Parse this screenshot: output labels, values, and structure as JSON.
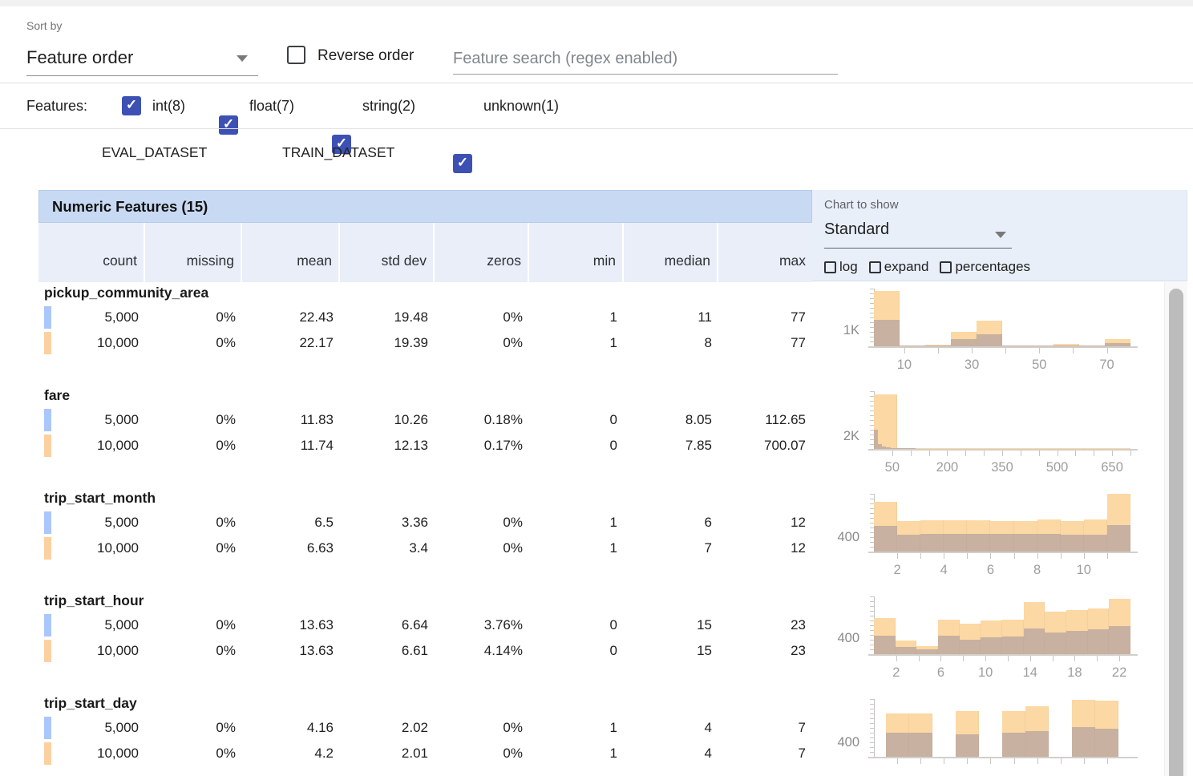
{
  "icons": {
    "check": "✓"
  },
  "toolbar": {
    "sort_by_label": "Sort by",
    "sort_value": "Feature order",
    "reverse_label": "Reverse order",
    "search_placeholder": "Feature search (regex enabled)"
  },
  "filters": {
    "label": "Features:",
    "items": [
      {
        "label": "int(8)",
        "checked": true
      },
      {
        "label": "float(7)",
        "checked": true
      },
      {
        "label": "string(2)",
        "checked": true
      },
      {
        "label": "unknown(1)",
        "checked": true
      }
    ]
  },
  "datasets": {
    "items": [
      {
        "name": "EVAL_DATASET",
        "color": "#a9c7fa"
      },
      {
        "name": "TRAIN_DATASET",
        "color": "#fbd1a1"
      }
    ]
  },
  "table": {
    "title": "Numeric Features (15)",
    "columns": [
      "count",
      "missing",
      "mean",
      "std dev",
      "zeros",
      "min",
      "median",
      "max"
    ]
  },
  "chart_controls": {
    "label": "Chart to show",
    "selected": "Standard",
    "options": [
      {
        "label": "log",
        "checked": false
      },
      {
        "label": "expand",
        "checked": false
      },
      {
        "label": "percentages",
        "checked": false
      }
    ]
  },
  "chart_data": {
    "type": "histogram-table",
    "legend": {
      "eval_label": "EVAL_DATASET",
      "eval_count": "5,000",
      "train_label": "TRAIN_DATASET",
      "train_count": "10,000"
    },
    "features": [
      {
        "name": "pickup_community_area",
        "stats": [
          {
            "dataset": "EVAL_DATASET",
            "values": [
              "5,000",
              "0%",
              "22.43",
              "19.48",
              "0%",
              "1",
              "11",
              "77"
            ]
          },
          {
            "dataset": "TRAIN_DATASET",
            "values": [
              "10,000",
              "0%",
              "22.17",
              "19.39",
              "0%",
              "1",
              "8",
              "77"
            ]
          }
        ],
        "hist": {
          "y_max": 3600,
          "y_gridline": {
            "value": 1000,
            "label": "1K"
          },
          "x_domain": [
            1,
            77
          ],
          "x_ticks": [
            {
              "v": 10,
              "label": "10"
            },
            {
              "v": 20
            },
            {
              "v": 30,
              "label": "30"
            },
            {
              "v": 40
            },
            {
              "v": 50,
              "label": "50"
            },
            {
              "v": 60
            },
            {
              "v": 70,
              "label": "70"
            }
          ],
          "train_bins": [
            [
              1,
              8.6,
              3450
            ],
            [
              8.6,
              16.2,
              70
            ],
            [
              16.2,
              23.8,
              120
            ],
            [
              23.8,
              31.4,
              900
            ],
            [
              31.4,
              39,
              1620
            ],
            [
              39,
              46.6,
              60
            ],
            [
              46.6,
              54.2,
              55
            ],
            [
              54.2,
              61.8,
              165
            ],
            [
              61.8,
              69.4,
              45
            ],
            [
              69.4,
              77,
              430
            ]
          ],
          "eval_bins": [
            [
              1,
              8.6,
              1650
            ],
            [
              8.6,
              16.2,
              30
            ],
            [
              16.2,
              23.8,
              45
            ],
            [
              23.8,
              31.4,
              430
            ],
            [
              31.4,
              39,
              760
            ],
            [
              39,
              46.6,
              25
            ],
            [
              46.6,
              54.2,
              20
            ],
            [
              54.2,
              61.8,
              60
            ],
            [
              61.8,
              69.4,
              18
            ],
            [
              69.4,
              77,
              180
            ]
          ]
        }
      },
      {
        "name": "fare",
        "stats": [
          {
            "dataset": "EVAL_DATASET",
            "values": [
              "5,000",
              "0%",
              "11.83",
              "10.26",
              "0.18%",
              "0",
              "8.05",
              "112.65"
            ]
          },
          {
            "dataset": "TRAIN_DATASET",
            "values": [
              "10,000",
              "0%",
              "11.74",
              "12.13",
              "0.17%",
              "0",
              "7.85",
              "700.07"
            ]
          }
        ],
        "hist": {
          "y_max": 9000,
          "y_gridline": {
            "value": 2000,
            "label": "2K"
          },
          "x_domain": [
            0,
            700
          ],
          "x_ticks": [
            {
              "v": 50,
              "label": "50"
            },
            {
              "v": 100
            },
            {
              "v": 150
            },
            {
              "v": 200,
              "label": "200"
            },
            {
              "v": 250
            },
            {
              "v": 300
            },
            {
              "v": 350,
              "label": "350"
            },
            {
              "v": 400
            },
            {
              "v": 450
            },
            {
              "v": 500,
              "label": "500"
            },
            {
              "v": 550
            },
            {
              "v": 600
            },
            {
              "v": 650,
              "label": "650"
            },
            {
              "v": 700
            }
          ],
          "train_bins": [
            [
              0,
              63.6,
              8500
            ],
            [
              63.6,
              127.3,
              120
            ],
            [
              127.3,
              190.9,
              40
            ],
            [
              190.9,
              254.5,
              15
            ],
            [
              254.5,
              318.2,
              8
            ],
            [
              318.2,
              381.8,
              5
            ],
            [
              381.8,
              445.5,
              3
            ],
            [
              445.5,
              509.1,
              2
            ],
            [
              509.1,
              572.7,
              2
            ],
            [
              572.7,
              636.4,
              1
            ],
            [
              636.4,
              700.1,
              2
            ]
          ],
          "eval_bins": [
            [
              0,
              11.3,
              3000
            ],
            [
              11.3,
              22.5,
              750
            ],
            [
              22.5,
              33.8,
              375
            ],
            [
              33.8,
              45.1,
              250
            ],
            [
              45.1,
              56.3,
              120
            ],
            [
              56.3,
              67.6,
              60
            ],
            [
              67.6,
              78.8,
              30
            ],
            [
              78.8,
              90.1,
              20
            ],
            [
              90.1,
              101.4,
              12
            ],
            [
              101.4,
              112.7,
              8
            ]
          ]
        }
      },
      {
        "name": "trip_start_month",
        "stats": [
          {
            "dataset": "EVAL_DATASET",
            "values": [
              "5,000",
              "0%",
              "6.5",
              "3.36",
              "0%",
              "1",
              "6",
              "12"
            ]
          },
          {
            "dataset": "TRAIN_DATASET",
            "values": [
              "10,000",
              "0%",
              "6.63",
              "3.4",
              "0%",
              "1",
              "7",
              "12"
            ]
          }
        ],
        "hist": {
          "y_max": 1600,
          "y_gridline": {
            "value": 400,
            "label": "400"
          },
          "x_domain": [
            1,
            12
          ],
          "x_ticks": [
            {
              "v": 2,
              "label": "2"
            },
            {
              "v": 3
            },
            {
              "v": 4,
              "label": "4"
            },
            {
              "v": 5
            },
            {
              "v": 6,
              "label": "6"
            },
            {
              "v": 7
            },
            {
              "v": 8,
              "label": "8"
            },
            {
              "v": 9
            },
            {
              "v": 10,
              "label": "10"
            },
            {
              "v": 11
            }
          ],
          "train_bins": [
            [
              1,
              2,
              1376
            ],
            [
              2,
              3,
              850
            ],
            [
              3,
              4,
              870
            ],
            [
              4,
              5,
              865
            ],
            [
              5,
              6,
              858
            ],
            [
              6,
              7,
              852
            ],
            [
              7,
              8,
              848
            ],
            [
              8,
              9,
              880
            ],
            [
              9,
              10,
              845
            ],
            [
              10,
              11,
              900
            ],
            [
              11,
              12,
              1600
            ]
          ],
          "eval_bins": [
            [
              1,
              2,
              720
            ],
            [
              2,
              3,
              470
            ],
            [
              3,
              4,
              480
            ],
            [
              4,
              5,
              490
            ],
            [
              5,
              6,
              485
            ],
            [
              6,
              7,
              488
            ],
            [
              7,
              8,
              480
            ],
            [
              8,
              9,
              478
            ],
            [
              9,
              10,
              460
            ],
            [
              10,
              11,
              470
            ],
            [
              11,
              12,
              740
            ]
          ]
        }
      },
      {
        "name": "trip_start_hour",
        "stats": [
          {
            "dataset": "EVAL_DATASET",
            "values": [
              "5,000",
              "0%",
              "13.63",
              "6.64",
              "3.76%",
              "0",
              "15",
              "23"
            ]
          },
          {
            "dataset": "TRAIN_DATASET",
            "values": [
              "10,000",
              "0%",
              "13.63",
              "6.61",
              "4.14%",
              "0",
              "15",
              "23"
            ]
          }
        ],
        "hist": {
          "y_max": 1440,
          "y_gridline": {
            "value": 400,
            "label": "400"
          },
          "x_domain": [
            0,
            23
          ],
          "x_ticks": [
            {
              "v": 2,
              "label": "2"
            },
            {
              "v": 4
            },
            {
              "v": 6,
              "label": "6"
            },
            {
              "v": 8
            },
            {
              "v": 10,
              "label": "10"
            },
            {
              "v": 12
            },
            {
              "v": 14,
              "label": "14"
            },
            {
              "v": 16
            },
            {
              "v": 18,
              "label": "18"
            },
            {
              "v": 20
            },
            {
              "v": 22,
              "label": "22"
            }
          ],
          "train_bins": [
            [
              0,
              1.92,
              900
            ],
            [
              1.92,
              3.83,
              331
            ],
            [
              3.83,
              5.75,
              200
            ],
            [
              5.75,
              7.67,
              864
            ],
            [
              7.67,
              9.58,
              763
            ],
            [
              9.58,
              11.5,
              850
            ],
            [
              11.5,
              13.42,
              864
            ],
            [
              13.42,
              15.33,
              1296
            ],
            [
              15.33,
              17.25,
              1051
            ],
            [
              17.25,
              19.17,
              1109
            ],
            [
              19.17,
              21.08,
              1138
            ],
            [
              21.08,
              23,
              1380
            ]
          ],
          "eval_bins": [
            [
              0,
              1.92,
              461
            ],
            [
              1.92,
              3.83,
              180
            ],
            [
              3.83,
              5.75,
              130
            ],
            [
              5.75,
              7.67,
              461
            ],
            [
              7.67,
              9.58,
              360
            ],
            [
              9.58,
              11.5,
              418
            ],
            [
              11.5,
              13.42,
              446
            ],
            [
              13.42,
              15.33,
              634
            ],
            [
              15.33,
              17.25,
              547
            ],
            [
              17.25,
              19.17,
              576
            ],
            [
              19.17,
              21.08,
              619
            ],
            [
              21.08,
              23,
              700
            ]
          ]
        }
      },
      {
        "name": "trip_start_day",
        "stats": [
          {
            "dataset": "EVAL_DATASET",
            "values": [
              "5,000",
              "0%",
              "4.16",
              "2.02",
              "0%",
              "1",
              "4",
              "7"
            ]
          },
          {
            "dataset": "TRAIN_DATASET",
            "values": [
              "10,000",
              "0%",
              "4.2",
              "2.01",
              "0%",
              "1",
              "4",
              "7"
            ]
          }
        ],
        "hist": {
          "y_max": 1600,
          "y_gridline": {
            "value": 400,
            "label": "400"
          },
          "x_domain": [
            0.7,
            7.3
          ],
          "x_ticks": [
            {
              "v": 1.3
            },
            {
              "v": 1.9
            },
            {
              "v": 2.5
            },
            {
              "v": 3.1
            },
            {
              "v": 3.7
            },
            {
              "v": 4.3
            },
            {
              "v": 4.9
            },
            {
              "v": 5.5
            },
            {
              "v": 6.1
            },
            {
              "v": 6.7
            }
          ],
          "train_bins": [
            [
              1,
              1.6,
              1200
            ],
            [
              1.6,
              2.2,
              1200
            ],
            [
              2.8,
              3.4,
              1259
            ],
            [
              4,
              4.6,
              1259
            ],
            [
              4.6,
              5.2,
              1392
            ],
            [
              5.8,
              6.4,
              1576
            ],
            [
              6.4,
              7,
              1552
            ]
          ],
          "eval_bins": [
            [
              1,
              1.6,
              667
            ],
            [
              1.6,
              2.2,
              667
            ],
            [
              2.8,
              3.4,
              614
            ],
            [
              4,
              4.6,
              667
            ],
            [
              4.6,
              5.2,
              710
            ],
            [
              5.8,
              6.4,
              814
            ],
            [
              6.4,
              7,
              784
            ]
          ]
        }
      }
    ]
  }
}
